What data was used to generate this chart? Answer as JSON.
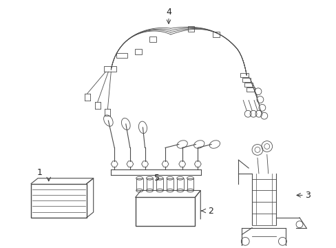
{
  "background_color": "#ffffff",
  "line_color": "#4a4a4a",
  "label_color": "#222222",
  "figsize": [
    4.89,
    3.6
  ],
  "dpi": 100,
  "arrow_color": "#333333",
  "lw_main": 1.0,
  "lw_thin": 0.6,
  "lw_med": 0.8
}
